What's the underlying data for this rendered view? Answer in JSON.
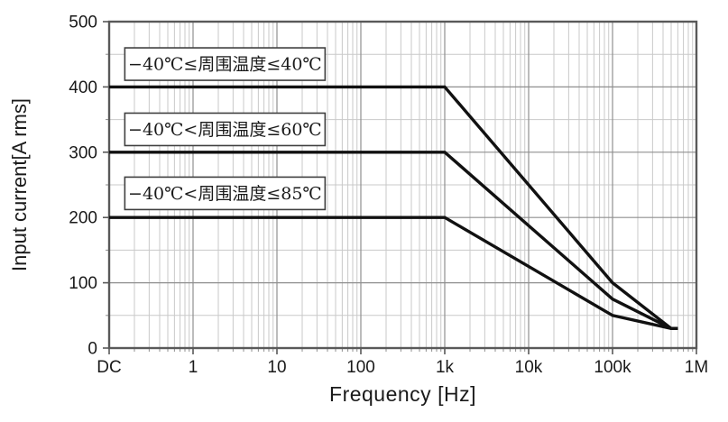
{
  "chart_data": {
    "type": "line",
    "title": "",
    "xlabel": "Frequency [Hz]",
    "ylabel": "Input current[A rms]",
    "x_scale": "log",
    "xlim": [
      0.1,
      1000000
    ],
    "ylim": [
      0,
      500
    ],
    "y_major_step": 100,
    "y_minor_step": 50,
    "grid": true,
    "legend_position": "none",
    "x_ticks": [
      {
        "label": "DC",
        "value": 0.1
      },
      {
        "label": "1",
        "value": 1
      },
      {
        "label": "10",
        "value": 10
      },
      {
        "label": "100",
        "value": 100
      },
      {
        "label": "1k",
        "value": 1000
      },
      {
        "label": "10k",
        "value": 10000
      },
      {
        "label": "100k",
        "value": 100000
      },
      {
        "label": "1M",
        "value": 1000000
      }
    ],
    "y_ticks": [
      0,
      100,
      200,
      300,
      400,
      500
    ],
    "series": [
      {
        "name": "ambient-40C",
        "label": "−40℃≤周围温度≤40℃",
        "points": [
          [
            0.1,
            400
          ],
          [
            1000,
            400
          ],
          [
            100000,
            100
          ],
          [
            500000,
            30
          ],
          [
            600000,
            30
          ]
        ],
        "label_box": {
          "x_hz": 2.4,
          "y_a": 435
        }
      },
      {
        "name": "ambient-60C",
        "label": "−40℃<周围温度≤60℃",
        "points": [
          [
            0.1,
            300
          ],
          [
            1000,
            300
          ],
          [
            100000,
            75
          ],
          [
            500000,
            30
          ],
          [
            600000,
            30
          ]
        ],
        "label_box": {
          "x_hz": 2.4,
          "y_a": 335
        }
      },
      {
        "name": "ambient-85C",
        "label": "−40℃<周围温度≤85℃",
        "points": [
          [
            0.1,
            200
          ],
          [
            1000,
            200
          ],
          [
            100000,
            50
          ],
          [
            500000,
            30
          ],
          [
            600000,
            30
          ]
        ],
        "label_box": {
          "x_hz": 2.4,
          "y_a": 237
        }
      }
    ],
    "colors": {
      "curve": "#111111",
      "grid_major": "#8f8f8f",
      "grid_minor": "#c9c9c9",
      "frame": "#595959",
      "text": "#1a1a1a",
      "label_box_bg": "#ffffff",
      "label_box_border": "#404040"
    }
  }
}
